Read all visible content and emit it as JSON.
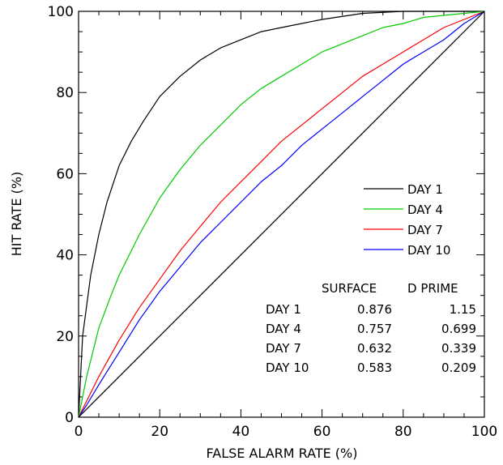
{
  "chart_data": {
    "type": "line",
    "title": "",
    "xlabel": "FALSE ALARM RATE (%)",
    "ylabel": "HIT RATE (%)",
    "xlim": [
      0,
      100
    ],
    "ylim": [
      0,
      100
    ],
    "x_ticks": [
      0,
      20,
      40,
      60,
      80,
      100
    ],
    "y_ticks": [
      0,
      20,
      40,
      60,
      80,
      100
    ],
    "grid": false,
    "legend_position": "center-right",
    "series": [
      {
        "name": "DAY 1",
        "color": "#000000",
        "points": [
          [
            0,
            0
          ],
          [
            1,
            20
          ],
          [
            3,
            35
          ],
          [
            5,
            45
          ],
          [
            7,
            53
          ],
          [
            10,
            62
          ],
          [
            13,
            68
          ],
          [
            16,
            73
          ],
          [
            20,
            79
          ],
          [
            25,
            84
          ],
          [
            30,
            88
          ],
          [
            35,
            91
          ],
          [
            40,
            93
          ],
          [
            45,
            95
          ],
          [
            50,
            96
          ],
          [
            60,
            98
          ],
          [
            70,
            99.5
          ],
          [
            80,
            100
          ],
          [
            90,
            100
          ],
          [
            100,
            100
          ]
        ]
      },
      {
        "name": "DAY 4",
        "color": "#00cc00",
        "points": [
          [
            0,
            0
          ],
          [
            2,
            10
          ],
          [
            5,
            22
          ],
          [
            8,
            30
          ],
          [
            10,
            35
          ],
          [
            15,
            45
          ],
          [
            20,
            54
          ],
          [
            25,
            61
          ],
          [
            30,
            67
          ],
          [
            35,
            72
          ],
          [
            40,
            77
          ],
          [
            45,
            81
          ],
          [
            50,
            84
          ],
          [
            55,
            87
          ],
          [
            60,
            90
          ],
          [
            65,
            92
          ],
          [
            70,
            94
          ],
          [
            75,
            96
          ],
          [
            80,
            97
          ],
          [
            85,
            98.5
          ],
          [
            90,
            99
          ],
          [
            100,
            100
          ]
        ]
      },
      {
        "name": "DAY 7",
        "color": "#ff0000",
        "points": [
          [
            0,
            0
          ],
          [
            2,
            4
          ],
          [
            5,
            10
          ],
          [
            10,
            19
          ],
          [
            15,
            27
          ],
          [
            20,
            34
          ],
          [
            25,
            41
          ],
          [
            30,
            47
          ],
          [
            35,
            53
          ],
          [
            40,
            58
          ],
          [
            45,
            63
          ],
          [
            50,
            68
          ],
          [
            55,
            72
          ],
          [
            60,
            76
          ],
          [
            65,
            80
          ],
          [
            70,
            84
          ],
          [
            75,
            87
          ],
          [
            80,
            90
          ],
          [
            85,
            93
          ],
          [
            90,
            96
          ],
          [
            95,
            98
          ],
          [
            100,
            100
          ]
        ]
      },
      {
        "name": "DAY 10",
        "color": "#0000ff",
        "points": [
          [
            0,
            0
          ],
          [
            2,
            3
          ],
          [
            5,
            8
          ],
          [
            10,
            16
          ],
          [
            15,
            24
          ],
          [
            20,
            31
          ],
          [
            25,
            37
          ],
          [
            30,
            43
          ],
          [
            35,
            48
          ],
          [
            40,
            53
          ],
          [
            45,
            58
          ],
          [
            50,
            62
          ],
          [
            55,
            67
          ],
          [
            60,
            71
          ],
          [
            65,
            75
          ],
          [
            70,
            79
          ],
          [
            75,
            83
          ],
          [
            80,
            87
          ],
          [
            85,
            90
          ],
          [
            90,
            93
          ],
          [
            95,
            97
          ],
          [
            100,
            100
          ]
        ]
      },
      {
        "name": "",
        "color": "#000000",
        "points": [
          [
            0,
            0
          ],
          [
            100,
            100
          ]
        ]
      }
    ],
    "table": {
      "headers": [
        "",
        "SURFACE",
        "D PRIME"
      ],
      "rows": [
        [
          "DAY 1",
          "0.876",
          "1.15"
        ],
        [
          "DAY 4",
          "0.757",
          "0.699"
        ],
        [
          "DAY 7",
          "0.632",
          "0.339"
        ],
        [
          "DAY 10",
          "0.583",
          "0.209"
        ]
      ]
    }
  }
}
